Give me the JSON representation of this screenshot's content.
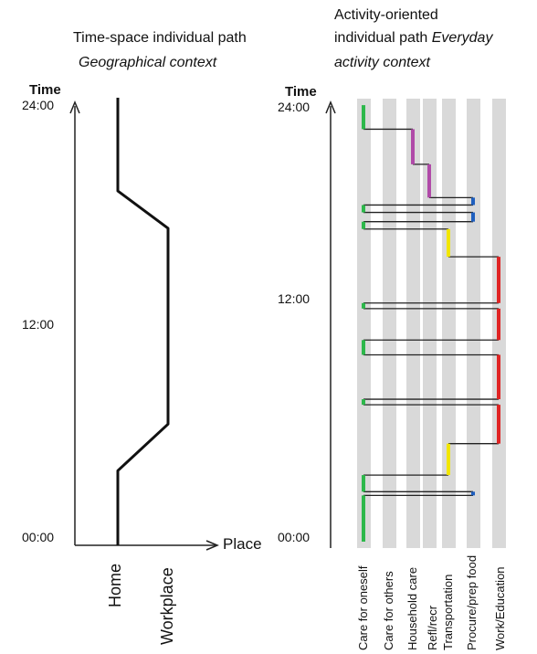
{
  "left_panel": {
    "title_line1": "Time-space individual path",
    "title_line2": "Geographical context",
    "axis_title": "Time",
    "tick_top": "24:00",
    "tick_mid": "12:00",
    "tick_bottom": "00:00",
    "x_axis_title": "Place",
    "places": [
      "Home",
      "Workplace"
    ],
    "path_hours": [
      {
        "place": "Home",
        "hour": 0
      },
      {
        "place": "Home",
        "hour": 4
      },
      {
        "place": "Workplace",
        "hour": 6.5
      },
      {
        "place": "Workplace",
        "hour": 17
      },
      {
        "place": "Home",
        "hour": 19
      },
      {
        "place": "Home",
        "hour": 24
      }
    ]
  },
  "right_panel": {
    "title_line1": "Activity-oriented",
    "title_line2_normal": "individual path",
    "title_line2_italic": "Everyday",
    "title_line3": "activity context",
    "axis_title": "Time",
    "tick_top": "24:00",
    "tick_mid": "12:00",
    "tick_bottom": "00:00",
    "activities": [
      "Care for oneself",
      "Care for others",
      "Household care",
      "Refl/recr",
      "Transportation",
      "Procure/prep food",
      "Work/Education"
    ],
    "colors": {
      "care_for_oneself": "#2db84b",
      "household_care": "#b04aa8",
      "transportation": "#f2e600",
      "procure_food": "#1f5fbf",
      "work_education": "#e02424",
      "column": "#d9d9d9"
    },
    "segments": [
      {
        "activity": 0,
        "start": 0,
        "end": 2.5
      },
      {
        "activity": 5,
        "start": 2.5,
        "end": 2.7
      },
      {
        "activity": 0,
        "start": 2.7,
        "end": 3.6
      },
      {
        "activity": 4,
        "start": 3.6,
        "end": 5.3
      },
      {
        "activity": 6,
        "start": 5.3,
        "end": 7.4
      },
      {
        "activity": 0,
        "start": 7.4,
        "end": 7.7
      },
      {
        "activity": 6,
        "start": 7.7,
        "end": 10.1
      },
      {
        "activity": 0,
        "start": 10.1,
        "end": 10.9
      },
      {
        "activity": 6,
        "start": 10.9,
        "end": 12.6
      },
      {
        "activity": 0,
        "start": 12.6,
        "end": 12.9
      },
      {
        "activity": 6,
        "start": 12.9,
        "end": 15.4
      },
      {
        "activity": 4,
        "start": 15.4,
        "end": 16.9
      },
      {
        "activity": 0,
        "start": 16.9,
        "end": 17.3
      },
      {
        "activity": 5,
        "start": 17.3,
        "end": 17.8
      },
      {
        "activity": 0,
        "start": 17.8,
        "end": 18.2
      },
      {
        "activity": 5,
        "start": 18.2,
        "end": 18.6
      },
      {
        "activity": 3,
        "start": 18.6,
        "end": 20.4
      },
      {
        "activity": 2,
        "start": 20.4,
        "end": 22.3
      },
      {
        "activity": 0,
        "start": 22.3,
        "end": 23.6
      }
    ]
  }
}
